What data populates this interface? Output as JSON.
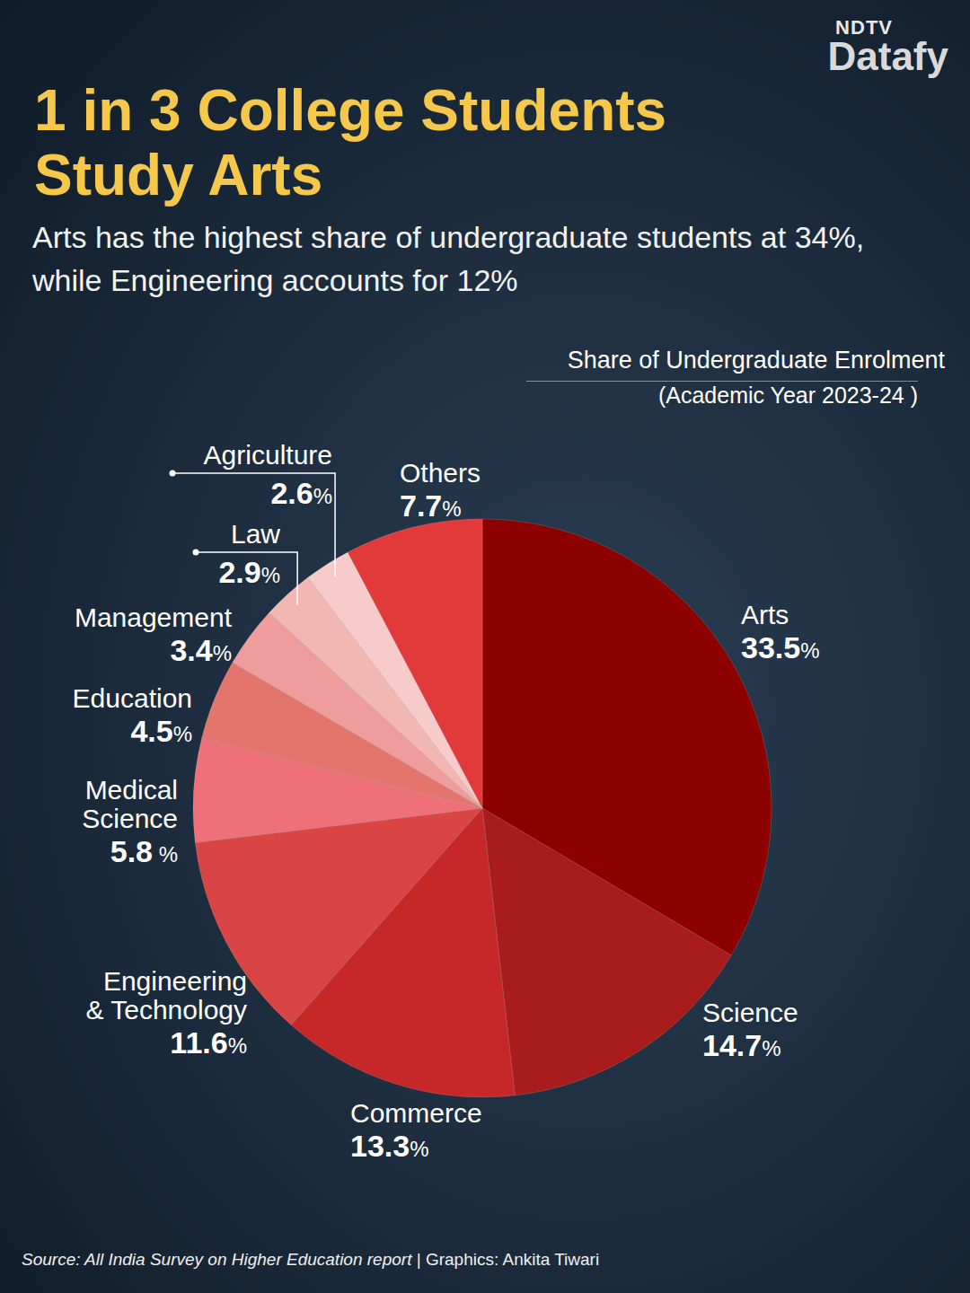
{
  "brand": [
    "NDTV",
    "Datafy"
  ],
  "headline": "1 in 3 College Students Study Arts",
  "standfirst": "Arts has the highest share of undergraduate students at 34%, while Engineering accounts for 12%",
  "chart_data": {
    "type": "pie",
    "title": "Share of Undergraduate Enrolment",
    "subtitle": "(Academic Year 2023-24 )",
    "categories": [
      "Arts",
      "Science",
      "Commerce",
      "Engineering & Technology",
      "Medical Science",
      "Education",
      "Management",
      "Law",
      "Agriculture",
      "Others"
    ],
    "values": [
      33.5,
      14.7,
      13.3,
      11.6,
      5.8,
      4.5,
      3.4,
      2.9,
      2.6,
      7.7
    ],
    "value_labels": [
      "33.5%",
      "14.7%",
      "13.3%",
      "11.6%",
      "5.8 %",
      "4.5%",
      "3.4%",
      "2.9%",
      "2.6%",
      "7.7%"
    ],
    "colors": [
      "#8c0000",
      "#a81c1e",
      "#c62729",
      "#d94544",
      "#ee717a",
      "#e3756d",
      "#ee9c9c",
      "#f3b7b1",
      "#f7cbc9",
      "#e23a3a"
    ],
    "data_labels": true
  },
  "footer": [
    "Source: All India Survey on Higher Education report",
    "|",
    "Graphics: Ankita Tiwari"
  ]
}
